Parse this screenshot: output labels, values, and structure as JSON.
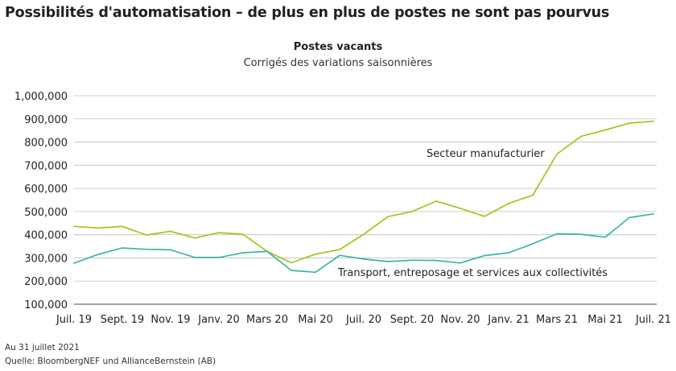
{
  "header": {
    "title": "Possibilités d'automatisation – de plus en plus de postes ne sont pas pourvus"
  },
  "notes": {
    "date": "Au 31 juillet 2021",
    "source": "Quelle: BloombergNEF und AllianceBernstein (AB)"
  },
  "chart_data": {
    "type": "line",
    "title": "Postes vacants",
    "subtitle": "Corrigés des variations saisonnières",
    "xlabel": "",
    "ylabel": "",
    "ylim": [
      100000,
      1000000
    ],
    "yticks": [
      "1,000,000",
      "900,000",
      "800,000",
      "700,000",
      "600,000",
      "500,000",
      "400,000",
      "300,000",
      "200,000",
      "100,000"
    ],
    "ytick_values": [
      1000000,
      900000,
      800000,
      700000,
      600000,
      500000,
      400000,
      300000,
      200000,
      100000
    ],
    "xticks": [
      "Juil. 19",
      "Sept. 19",
      "Nov. 19",
      "Janv. 20",
      "Mars 20",
      "Mai 20",
      "Juil. 20",
      "Sept. 20",
      "Nov. 20",
      "Janv. 21",
      "Mars 21",
      "Mai 21",
      "Juil. 21"
    ],
    "x": [
      "2019-07",
      "2019-08",
      "2019-09",
      "2019-10",
      "2019-11",
      "2019-12",
      "2020-01",
      "2020-02",
      "2020-03",
      "2020-04",
      "2020-05",
      "2020-06",
      "2020-07",
      "2020-08",
      "2020-09",
      "2020-10",
      "2020-11",
      "2020-12",
      "2021-01",
      "2021-02",
      "2021-03",
      "2021-04",
      "2021-05",
      "2021-06",
      "2021-07"
    ],
    "grid": "horizontal",
    "series": [
      {
        "name": "Secteur manufacturier",
        "color": "#a6c21c",
        "values": [
          436000,
          429000,
          436000,
          399000,
          415000,
          386000,
          409000,
          402000,
          328000,
          279000,
          316000,
          336000,
          402000,
          478000,
          500000,
          545000,
          514000,
          479000,
          535000,
          570000,
          748000,
          825000,
          852000,
          882000,
          890000
        ]
      },
      {
        "name": "Transport, entreposage et services aux collectivités",
        "color": "#3cb4a4",
        "values": [
          277000,
          315000,
          343000,
          337000,
          335000,
          302000,
          302000,
          322000,
          328000,
          246000,
          238000,
          311000,
          295000,
          284000,
          290000,
          289000,
          278000,
          310000,
          322000,
          361000,
          404000,
          402000,
          389000,
          474000,
          490000
        ]
      }
    ]
  }
}
